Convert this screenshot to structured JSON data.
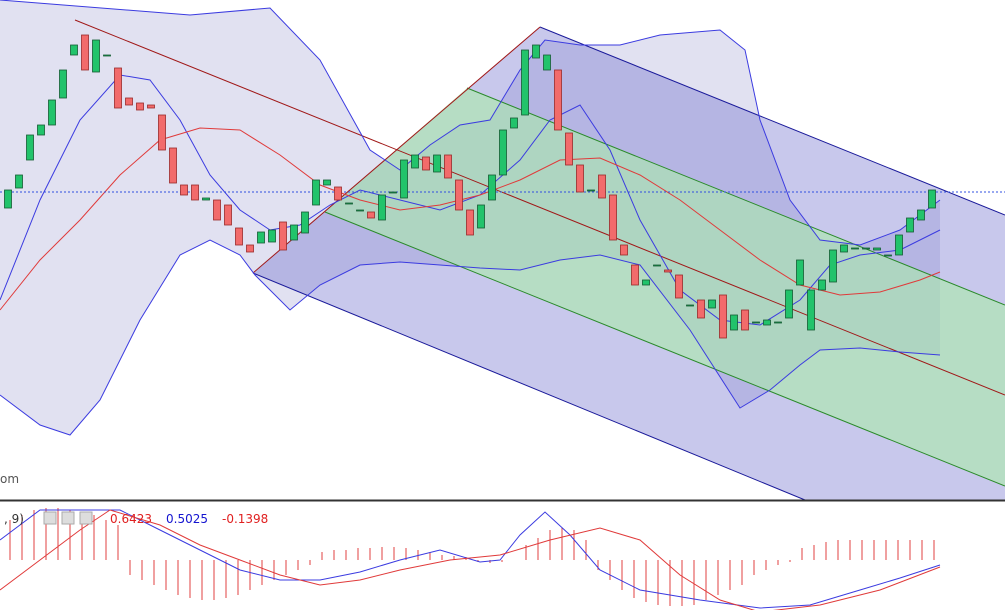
{
  "chart_data": {
    "type": "candlestick",
    "ylim": [
      0,
      500
    ],
    "up_color": "#22c36b",
    "down_color": "#f26b6b",
    "open": [
      292,
      312,
      340,
      365,
      375,
      402,
      445,
      465,
      428,
      445,
      432,
      402,
      397,
      395,
      385,
      352,
      315,
      315,
      300,
      300,
      295,
      272,
      255,
      257,
      258,
      278,
      260,
      267,
      295,
      315,
      313,
      297,
      290,
      288,
      280,
      308,
      302,
      332,
      343,
      328,
      345,
      320,
      290,
      272,
      300,
      325,
      372,
      385,
      442,
      430,
      430,
      367,
      335,
      310,
      325,
      305,
      255,
      235,
      215,
      235,
      230,
      225,
      195,
      200,
      192,
      205,
      170,
      190,
      178,
      175,
      178,
      182,
      215,
      170,
      210,
      218,
      248,
      252,
      252,
      250,
      245,
      245,
      268,
      280,
      292
    ],
    "close": [
      310,
      325,
      365,
      375,
      400,
      430,
      455,
      430,
      460,
      445,
      392,
      395,
      390,
      392,
      350,
      317,
      305,
      300,
      302,
      280,
      275,
      255,
      248,
      268,
      270,
      250,
      275,
      288,
      320,
      320,
      300,
      297,
      290,
      282,
      305,
      308,
      340,
      345,
      330,
      345,
      322,
      290,
      265,
      295,
      325,
      370,
      382,
      450,
      455,
      445,
      370,
      335,
      308,
      310,
      302,
      260,
      245,
      215,
      220,
      235,
      228,
      202,
      195,
      182,
      200,
      162,
      185,
      170,
      178,
      180,
      178,
      210,
      240,
      210,
      220,
      250,
      255,
      252,
      252,
      252,
      245,
      265,
      282,
      290,
      310
    ],
    "watermark": "om",
    "indicator_label": ", 9)",
    "macd": {
      "values": [
        0.6423,
        0.5025,
        -0.1398
      ],
      "colors": [
        "#e02020",
        "#1414d0",
        "#e02020"
      ]
    }
  }
}
